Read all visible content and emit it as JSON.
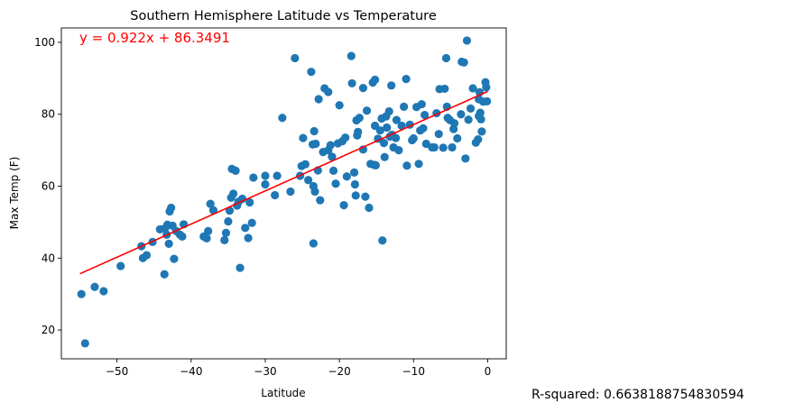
{
  "chart_data": {
    "type": "scatter",
    "title": "Southern Hemisphere Latitude vs Temperature",
    "xlabel": "Latitude",
    "ylabel": "Max Temp (F)",
    "xlim": [
      -57.5,
      2.5
    ],
    "ylim": [
      12,
      104
    ],
    "x_ticks": [
      -50,
      -40,
      -30,
      -20,
      -10,
      0
    ],
    "y_ticks": [
      20,
      40,
      60,
      80,
      100
    ],
    "grid": false,
    "points_color": "#1f77b4",
    "regression": {
      "equation_label": "y = 0.922x + 86.3491",
      "slope": 0.922,
      "intercept": 86.3491,
      "x_range": [
        -55,
        0
      ],
      "color": "#ff0000"
    },
    "points": [
      [
        -54.8,
        30
      ],
      [
        -54.3,
        16.3
      ],
      [
        -53,
        32
      ],
      [
        -51.8,
        30.8
      ],
      [
        -49.5,
        37.8
      ],
      [
        -46.7,
        43.3
      ],
      [
        -46.5,
        40
      ],
      [
        -46,
        40.8
      ],
      [
        -45.2,
        44.5
      ],
      [
        -44.2,
        48
      ],
      [
        -43.6,
        35.5
      ],
      [
        -43.5,
        48.3
      ],
      [
        -43.3,
        46.5
      ],
      [
        -43.2,
        49.3
      ],
      [
        -43,
        44
      ],
      [
        -42.9,
        53
      ],
      [
        -42.7,
        54
      ],
      [
        -42.5,
        49
      ],
      [
        -42.3,
        39.8
      ],
      [
        -42,
        47.5
      ],
      [
        -41.5,
        46.5
      ],
      [
        -41.2,
        46
      ],
      [
        -41,
        49.4
      ],
      [
        -38.3,
        46
      ],
      [
        -37.9,
        45.5
      ],
      [
        -37.7,
        47.5
      ],
      [
        -37.4,
        55.1
      ],
      [
        -37,
        53.3
      ],
      [
        -35.5,
        45
      ],
      [
        -35.3,
        47
      ],
      [
        -35,
        50.2
      ],
      [
        -34.8,
        53.2
      ],
      [
        -34.6,
        56.8
      ],
      [
        -34.5,
        64.8
      ],
      [
        -34.3,
        57.9
      ],
      [
        -34,
        64.3
      ],
      [
        -33.8,
        54.6
      ],
      [
        -33.6,
        55.7
      ],
      [
        -33.4,
        37.3
      ],
      [
        -33.1,
        56.5
      ],
      [
        -32.7,
        48.4
      ],
      [
        -32.3,
        45.6
      ],
      [
        -32.1,
        55.5
      ],
      [
        -31.8,
        49.8
      ],
      [
        -31.6,
        62.4
      ],
      [
        -30,
        62.9
      ],
      [
        -30,
        60.5
      ],
      [
        -28.7,
        57.5
      ],
      [
        -28.4,
        62.9
      ],
      [
        -27.7,
        79
      ],
      [
        -26.6,
        58.5
      ],
      [
        -26,
        95.6
      ],
      [
        -25.3,
        62.9
      ],
      [
        -25.1,
        65.6
      ],
      [
        -24.9,
        73.4
      ],
      [
        -24.6,
        66.1
      ],
      [
        -24.2,
        61.7
      ],
      [
        -23.8,
        91.8
      ],
      [
        -23.6,
        71.6
      ],
      [
        -23.4,
        75.3
      ],
      [
        -23.3,
        58.5
      ],
      [
        -23.5,
        60
      ],
      [
        -23.5,
        44.1
      ],
      [
        -23.2,
        71.8
      ],
      [
        -22.9,
        64.4
      ],
      [
        -22.8,
        84.2
      ],
      [
        -22.6,
        56.1
      ],
      [
        -22.2,
        69.5
      ],
      [
        -22,
        87.2
      ],
      [
        -21.5,
        86.2
      ],
      [
        -21.5,
        70
      ],
      [
        -21.2,
        71.4
      ],
      [
        -21,
        68.2
      ],
      [
        -20.8,
        64.3
      ],
      [
        -20.5,
        60.7
      ],
      [
        -20.2,
        71.9
      ],
      [
        -20,
        82.5
      ],
      [
        -19.6,
        72.5
      ],
      [
        -19.4,
        54.7
      ],
      [
        -19.2,
        73.5
      ],
      [
        -19,
        62.7
      ],
      [
        -18.4,
        96.2
      ],
      [
        -18.3,
        88.6
      ],
      [
        -18,
        63.8
      ],
      [
        -17.9,
        60.5
      ],
      [
        -17.8,
        57.4
      ],
      [
        -17.6,
        74.1
      ],
      [
        -17.7,
        78.3
      ],
      [
        -17.5,
        75.1
      ],
      [
        -17.3,
        79
      ],
      [
        -16.8,
        87.3
      ],
      [
        -16.8,
        70.2
      ],
      [
        -16.5,
        57.1
      ],
      [
        -16.3,
        81
      ],
      [
        -16,
        54
      ],
      [
        -15.8,
        66.2
      ],
      [
        -15.5,
        88.8
      ],
      [
        -15.3,
        65.9
      ],
      [
        -15.2,
        76.8
      ],
      [
        -15.1,
        65.8
      ],
      [
        -15.2,
        89.6
      ],
      [
        -14.8,
        73.2
      ],
      [
        -14.5,
        75.5
      ],
      [
        -14.3,
        78.8
      ],
      [
        -14.2,
        44.9
      ],
      [
        -14,
        72
      ],
      [
        -13.9,
        68.1
      ],
      [
        -13.7,
        79.4
      ],
      [
        -13.6,
        76.3
      ],
      [
        -13.3,
        80.8
      ],
      [
        -13.2,
        73.8
      ],
      [
        -13,
        88
      ],
      [
        -12.9,
        74.3
      ],
      [
        -12.7,
        70.8
      ],
      [
        -12.4,
        73.4
      ],
      [
        -12.3,
        78.4
      ],
      [
        -12,
        70
      ],
      [
        -11.6,
        76.8
      ],
      [
        -11.3,
        82.1
      ],
      [
        -11,
        89.8
      ],
      [
        -10.9,
        65.7
      ],
      [
        -10.5,
        77.1
      ],
      [
        -10.2,
        72.8
      ],
      [
        -10,
        73.3
      ],
      [
        -9.6,
        82
      ],
      [
        -9.3,
        66.2
      ],
      [
        -9.1,
        75.5
      ],
      [
        -8.9,
        82.8
      ],
      [
        -8.7,
        76.1
      ],
      [
        -8.5,
        79.8
      ],
      [
        -8.3,
        71.8
      ],
      [
        -7.5,
        70.8
      ],
      [
        -7.2,
        70.8
      ],
      [
        -6.9,
        80.3
      ],
      [
        -6.6,
        74.5
      ],
      [
        -6.5,
        87
      ],
      [
        -6,
        70.7
      ],
      [
        -5.8,
        87.1
      ],
      [
        -5.6,
        95.6
      ],
      [
        -5.5,
        82.1
      ],
      [
        -5.4,
        79
      ],
      [
        -5.1,
        78.4
      ],
      [
        -4.8,
        70.8
      ],
      [
        -4.6,
        75.9
      ],
      [
        -4.5,
        77.5
      ],
      [
        -4.1,
        73.3
      ],
      [
        -3.6,
        80
      ],
      [
        -3.5,
        94.6
      ],
      [
        -3.2,
        94.4
      ],
      [
        -3,
        67.7
      ],
      [
        -2.8,
        100.5
      ],
      [
        -2.6,
        78.5
      ],
      [
        -2.3,
        81.6
      ],
      [
        -2,
        87.2
      ],
      [
        -1.6,
        72.1
      ],
      [
        -1.3,
        73
      ],
      [
        -1.2,
        84.2
      ],
      [
        -1.1,
        86.1
      ],
      [
        -1,
        80.4
      ],
      [
        -0.9,
        78.6
      ],
      [
        -0.8,
        75.2
      ],
      [
        -0.6,
        83.5
      ],
      [
        -0.3,
        88.9
      ],
      [
        -0.2,
        87.5
      ],
      [
        -0.1,
        83.6
      ],
      [
        -1.2,
        79.5
      ]
    ]
  },
  "annotation": {
    "r_squared_text": "R-squared: 0.6638188754830594"
  }
}
